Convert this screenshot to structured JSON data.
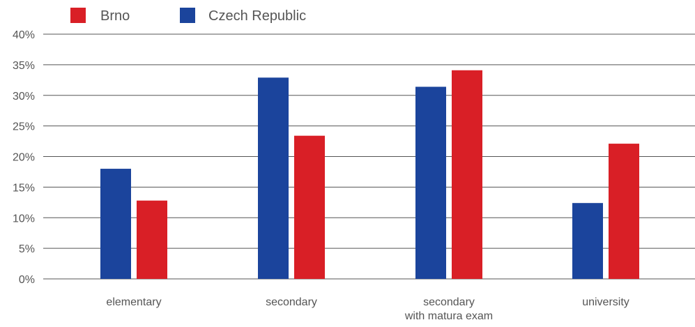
{
  "chart_data": {
    "type": "bar",
    "categories": [
      [
        "elementary"
      ],
      [
        "secondary"
      ],
      [
        "secondary",
        "with matura exam"
      ],
      [
        "university"
      ]
    ],
    "series": [
      {
        "name": "Czech Republic",
        "color": "#1b449c",
        "values": [
          18.0,
          32.9,
          31.4,
          12.4
        ]
      },
      {
        "name": "Brno",
        "color": "#d91f26",
        "values": [
          12.8,
          23.4,
          34.1,
          22.1
        ]
      }
    ],
    "legend": {
      "placement": "top-left",
      "items": [
        {
          "label": "Brno",
          "color": "#d91f26"
        },
        {
          "label": "Czech Republic",
          "color": "#1b449c"
        }
      ]
    },
    "y_ticks": [
      "0%",
      "5%",
      "10%",
      "15%",
      "20%",
      "25%",
      "30%",
      "35%",
      "40%"
    ],
    "ylim": [
      0,
      40
    ],
    "grid": true,
    "gridline_color": "#555555"
  }
}
